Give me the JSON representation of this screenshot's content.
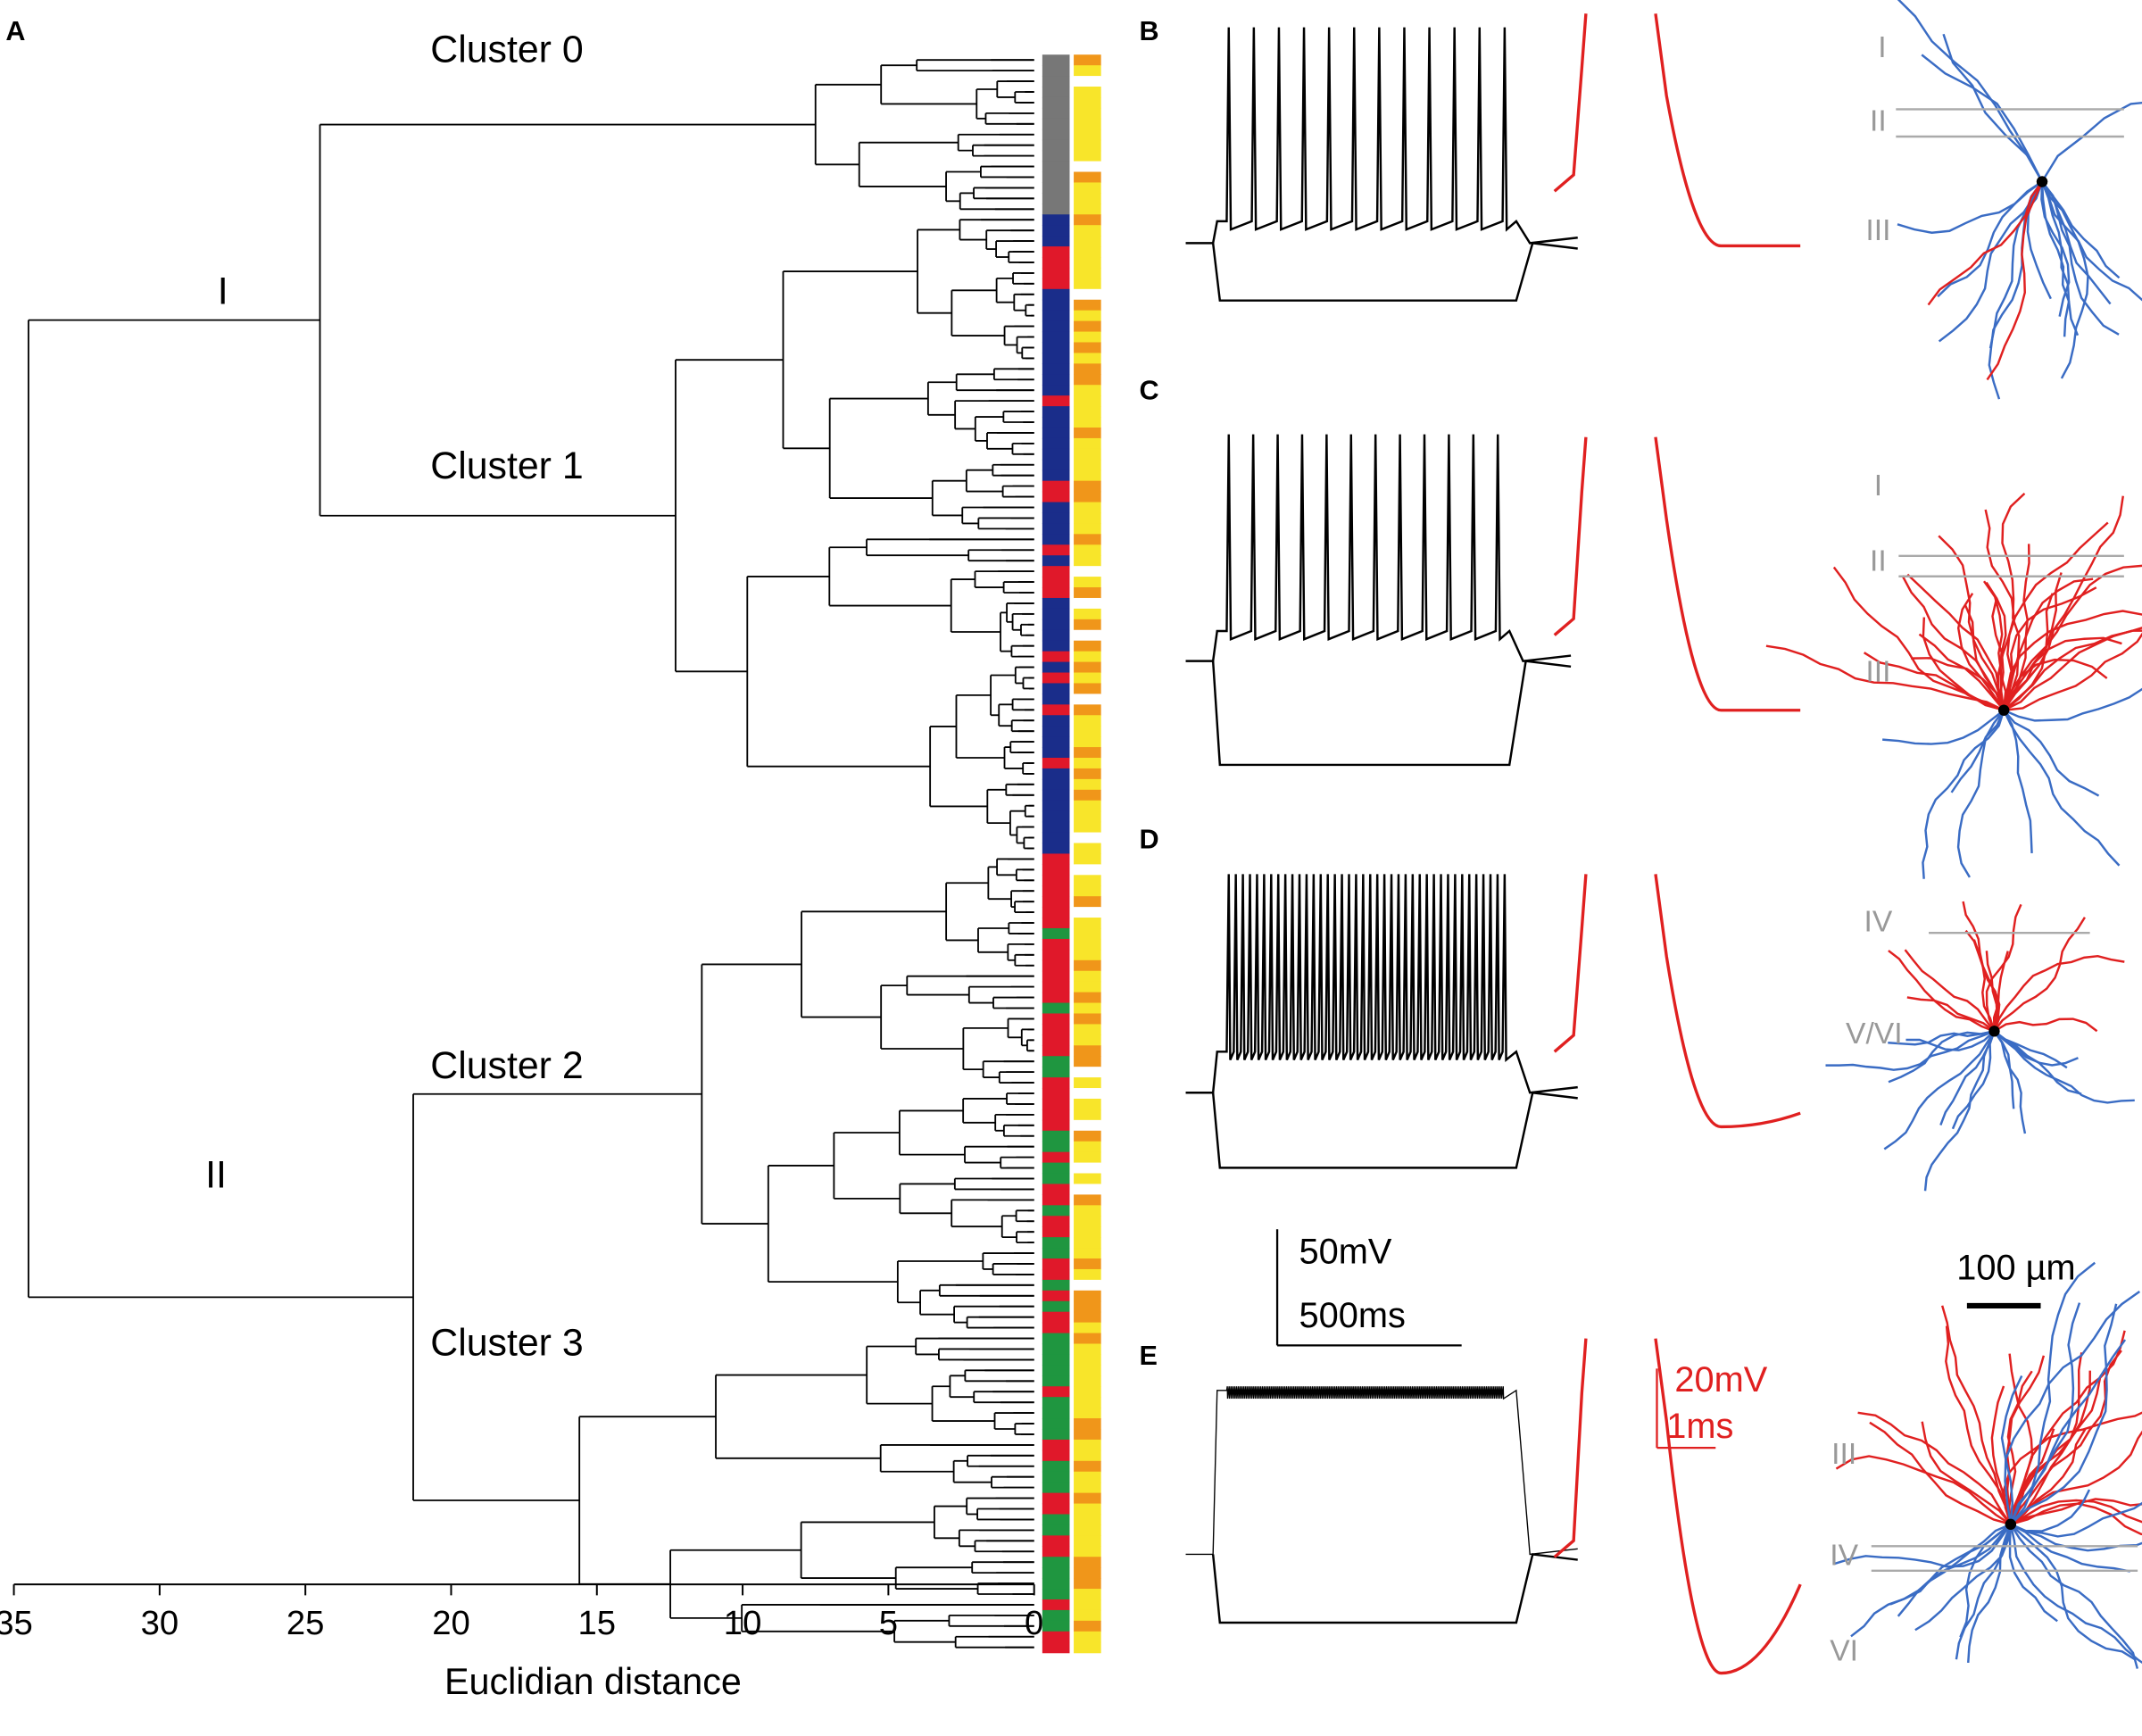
{
  "panel_labels": [
    "A",
    "B",
    "C",
    "D",
    "E"
  ],
  "chart_data": {
    "type": "dendrogram",
    "xlabel": "Euclidian distance",
    "xlim": [
      35,
      0
    ],
    "xticks": [
      35,
      30,
      25,
      20,
      15,
      10,
      5,
      0
    ],
    "root_height": 34.5,
    "branches": [
      {
        "label": "I",
        "height": 24.5
      },
      {
        "label": "II",
        "height": 21.3
      }
    ],
    "clusters": [
      {
        "label": "Cluster 0",
        "height": 7.5
      },
      {
        "label": "Cluster 1",
        "height": 12.3
      },
      {
        "label": "Cluster 2",
        "height": 11.4
      },
      {
        "label": "Cluster 3",
        "height": 15.6
      }
    ]
  },
  "layers": {
    "B": [
      "I",
      "II",
      "III"
    ],
    "C": [
      "I",
      "II",
      "III"
    ],
    "D": [
      "IV",
      "V/VI"
    ],
    "E": [
      "III",
      "IV",
      "VI"
    ]
  },
  "scale_bars": {
    "voltage_slow": "50mV",
    "time_slow": "500ms",
    "voltage_fast": "20mV",
    "time_fast": "1ms",
    "length": "100 µm"
  }
}
